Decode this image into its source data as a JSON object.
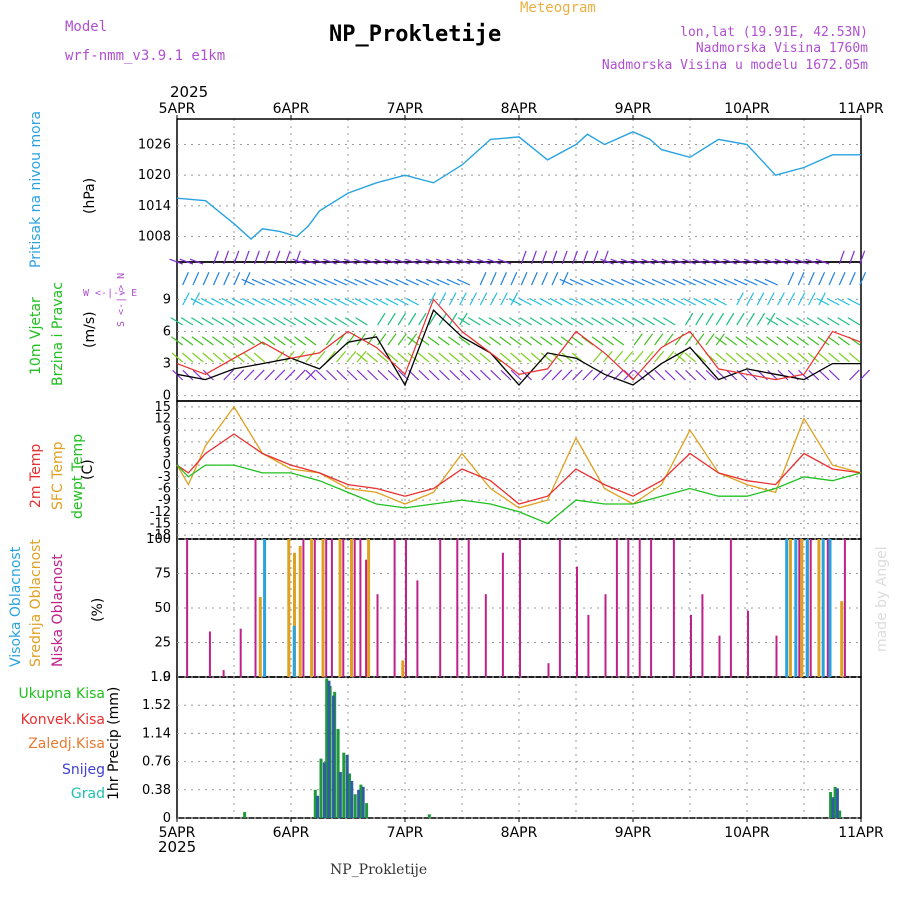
{
  "header": {
    "model_label": "Model",
    "model_name": "wrf-nmm_v3.9.1 e1km",
    "title": "NP_Prokletije",
    "subtitle": "Meteogram",
    "lonlat": "lon,lat (19.91E, 42.53N)",
    "elevation": "Nadmorska Visina 1760m",
    "elevation_model": "Nadmorska Visina u modelu 1672.05m",
    "footer": "NP_Prokletije",
    "credit": "made by Angel",
    "year": "2025"
  },
  "colors": {
    "pressure": "#29a3e0",
    "wind_label": "#20c020",
    "temp2m": "#e83030",
    "sfc": "#e0a020",
    "dewpt": "#20c020",
    "cloud_high": "#29a3e0",
    "cloud_mid": "#e0a020",
    "cloud_low": "#c0208a",
    "header": "#b050d0",
    "subtitle": "#e8b040"
  },
  "chart_data": [
    {
      "type": "line",
      "panel": "pressure",
      "ylabel": "Pritisak na nivou mora",
      "unit": "(hPa)",
      "x_ticks": [
        "5APR",
        "6APR",
        "7APR",
        "8APR",
        "9APR",
        "10APR",
        "11APR"
      ],
      "y_ticks": [
        1008,
        1014,
        1020,
        1026
      ],
      "ylim": [
        1003,
        1031
      ],
      "series": [
        {
          "name": "Pritisak na nivou mora",
          "x_days": [
            0,
            0.25,
            0.5,
            0.65,
            0.75,
            0.9,
            1.05,
            1.15,
            1.25,
            1.5,
            1.75,
            2.0,
            2.25,
            2.5,
            2.75,
            3.0,
            3.25,
            3.5,
            3.6,
            3.75,
            4.0,
            4.15,
            4.25,
            4.5,
            4.75,
            5.0,
            5.25,
            5.5,
            5.75,
            6.0
          ],
          "values": [
            1015.5,
            1015,
            1010.5,
            1007.5,
            1009.5,
            1009,
            1008,
            1010,
            1013,
            1016.5,
            1018.5,
            1020,
            1018.5,
            1022,
            1027,
            1027.5,
            1023,
            1026,
            1028,
            1026,
            1028.5,
            1027,
            1025,
            1023.5,
            1027,
            1026,
            1020,
            1021.5,
            1024,
            1024
          ]
        }
      ]
    },
    {
      "type": "line",
      "panel": "wind",
      "ylabel": "10m Vjetar Brzina i Pravac",
      "unit": "(m/s)",
      "axis_key": "W <-|-> E",
      "axis_key_vertical": "S <-|-> N",
      "y_ticks": [
        0,
        3,
        6,
        9
      ],
      "ylim": [
        -0.5,
        12.5
      ],
      "series": [
        {
          "name": "speed",
          "x_days": [
            0,
            0.25,
            0.5,
            0.75,
            1.0,
            1.25,
            1.5,
            1.75,
            2.0,
            2.25,
            2.5,
            2.75,
            3.0,
            3.25,
            3.5,
            3.75,
            4.0,
            4.25,
            4.5,
            4.75,
            5.0,
            5.25,
            5.5,
            5.75,
            6.0
          ],
          "values": [
            2,
            1.5,
            2.5,
            3,
            3.5,
            2.5,
            5,
            5.5,
            1,
            8,
            5.5,
            4,
            1,
            4,
            3.5,
            2,
            1,
            3,
            4.5,
            1.5,
            2.5,
            2,
            1.5,
            3,
            3
          ]
        },
        {
          "name": "gust",
          "x_days": [
            0,
            0.25,
            0.5,
            0.75,
            1.0,
            1.25,
            1.5,
            1.75,
            2.0,
            2.25,
            2.5,
            2.75,
            3.0,
            3.25,
            3.5,
            3.75,
            4.0,
            4.25,
            4.5,
            4.75,
            5.0,
            5.25,
            5.5,
            5.75,
            6.0
          ],
          "values": [
            3,
            2,
            3.5,
            5,
            3.5,
            4,
            6,
            4.5,
            2,
            9,
            6,
            4,
            2,
            2.5,
            6,
            4,
            1.5,
            4.5,
            6,
            2.5,
            2,
            1.5,
            2,
            6,
            5
          ]
        }
      ]
    },
    {
      "type": "line",
      "panel": "temperature",
      "unit": "(C)",
      "y_ticks": [
        15,
        12,
        9,
        6,
        3,
        0,
        -3,
        -6,
        -9,
        -12,
        -15,
        -18
      ],
      "ylim": [
        -19,
        16.5
      ],
      "series": [
        {
          "name": "2m Temp",
          "x_days": [
            0,
            0.1,
            0.25,
            0.5,
            0.75,
            1.0,
            1.25,
            1.5,
            1.75,
            2.0,
            2.25,
            2.5,
            2.75,
            3.0,
            3.25,
            3.5,
            3.75,
            4.0,
            4.25,
            4.5,
            4.75,
            5.0,
            5.25,
            5.5,
            5.75,
            6.0
          ],
          "values": [
            0,
            -2,
            3,
            8,
            3,
            0,
            -2,
            -5,
            -6,
            -8,
            -6,
            -1,
            -4,
            -10,
            -8,
            -1,
            -5,
            -8,
            -4,
            3,
            -2,
            -4,
            -5,
            3,
            -1,
            -2
          ]
        },
        {
          "name": "SFC Temp",
          "x_days": [
            0,
            0.1,
            0.25,
            0.5,
            0.75,
            1.0,
            1.25,
            1.5,
            1.75,
            2.0,
            2.25,
            2.5,
            2.75,
            3.0,
            3.25,
            3.5,
            3.75,
            4.0,
            4.25,
            4.5,
            4.75,
            5.0,
            5.25,
            5.5,
            5.75,
            6.0
          ],
          "values": [
            0,
            -5,
            5,
            15,
            3,
            -1,
            -2,
            -6,
            -7,
            -10,
            -7,
            3,
            -6,
            -11,
            -9,
            7,
            -6,
            -10,
            -5,
            9,
            -2,
            -5,
            -7,
            12,
            0,
            -2
          ]
        },
        {
          "name": "dewpt Temp",
          "x_days": [
            0,
            0.1,
            0.25,
            0.5,
            0.75,
            1.0,
            1.25,
            1.5,
            1.75,
            2.0,
            2.25,
            2.5,
            2.75,
            3.0,
            3.25,
            3.5,
            3.75,
            4.0,
            4.25,
            4.5,
            4.75,
            5.0,
            5.25,
            5.5,
            5.75,
            6.0
          ],
          "values": [
            0,
            -3,
            0,
            0,
            -2,
            -2,
            -4,
            -7,
            -10,
            -11,
            -10,
            -9,
            -10,
            -12,
            -15,
            -9,
            -10,
            -10,
            -8,
            -6,
            -8,
            -8,
            -6,
            -3,
            -4,
            -2
          ]
        }
      ]
    },
    {
      "type": "bar",
      "panel": "cloud",
      "unit": "(%)",
      "y_ticks": [
        0,
        25,
        50,
        75,
        100
      ],
      "ylim": [
        0,
        100
      ],
      "series": [
        {
          "name": "Niska Oblacnost",
          "x_days": [
            0.08,
            0.28,
            0.4,
            0.55,
            0.68,
            1.1,
            1.2,
            1.3,
            1.35,
            1.45,
            1.55,
            1.6,
            1.65,
            1.75,
            1.9,
            2.0,
            2.1,
            2.3,
            2.45,
            2.55,
            2.7,
            2.85,
            3.0,
            3.25,
            3.35,
            3.5,
            3.6,
            3.75,
            3.85,
            3.95,
            4.05,
            4.15,
            4.35,
            4.5,
            4.6,
            4.75,
            4.85,
            5.0,
            5.25,
            5.45,
            5.55,
            5.7,
            5.85
          ],
          "values": [
            100,
            33,
            5,
            35,
            100,
            100,
            100,
            100,
            100,
            100,
            100,
            100,
            85,
            60,
            100,
            100,
            70,
            100,
            100,
            100,
            60,
            90,
            100,
            10,
            100,
            80,
            45,
            60,
            100,
            100,
            100,
            100,
            100,
            45,
            60,
            30,
            100,
            48,
            30,
            100,
            100,
            100,
            100
          ]
        },
        {
          "name": "Srednja Oblacnost",
          "x_days": [
            0.7,
            0.95,
            1.0,
            1.05,
            1.15,
            1.25,
            1.4,
            1.5,
            1.65,
            1.95,
            5.35,
            5.45,
            5.5,
            5.6,
            5.8
          ],
          "values": [
            58,
            100,
            90,
            95,
            100,
            100,
            100,
            100,
            100,
            12,
            100,
            100,
            100,
            100,
            55
          ]
        },
        {
          "name": "Visoka Oblacnost",
          "x_days": [
            0.72,
            0.98,
            5.3,
            5.38,
            5.48,
            5.62,
            5.68
          ],
          "values": [
            100,
            37,
            100,
            100,
            100,
            100,
            100
          ]
        }
      ]
    },
    {
      "type": "bar",
      "panel": "precip",
      "ylabel": "1hr Precip",
      "unit": "(mm)",
      "y_ticks": [
        0,
        0.38,
        0.76,
        1.14,
        1.52,
        1.9
      ],
      "ylim": [
        0,
        1.9
      ],
      "legend": [
        "Ukupna Kisa",
        "Konvek.Kisa",
        "Zaledj.Kisa",
        "Snijeg",
        "Grad"
      ],
      "legend_colors": [
        "#20c020",
        "#e83030",
        "#e87a30",
        "#4040d0",
        "#20c0b0"
      ],
      "series": [
        {
          "name": "Ukupna Kisa",
          "x_days": [
            0.58,
            1.2,
            1.25,
            1.3,
            1.33,
            1.37,
            1.4,
            1.45,
            1.5,
            1.55,
            1.6,
            1.65,
            2.2,
            5.72,
            5.76,
            5.8
          ],
          "values": [
            0.08,
            0.38,
            0.8,
            1.88,
            1.78,
            1.7,
            1.2,
            0.88,
            0.6,
            0.32,
            0.45,
            0.2,
            0.05,
            0.35,
            0.42,
            0.1
          ]
        },
        {
          "name": "Snijeg",
          "x_days": [
            1.22,
            1.28,
            1.32,
            1.36,
            1.42,
            1.48,
            1.52,
            1.58,
            1.62,
            5.74,
            5.78
          ],
          "values": [
            0.3,
            0.75,
            1.85,
            1.65,
            0.62,
            0.85,
            0.5,
            0.38,
            0.42,
            0.28,
            0.4
          ]
        }
      ]
    }
  ]
}
